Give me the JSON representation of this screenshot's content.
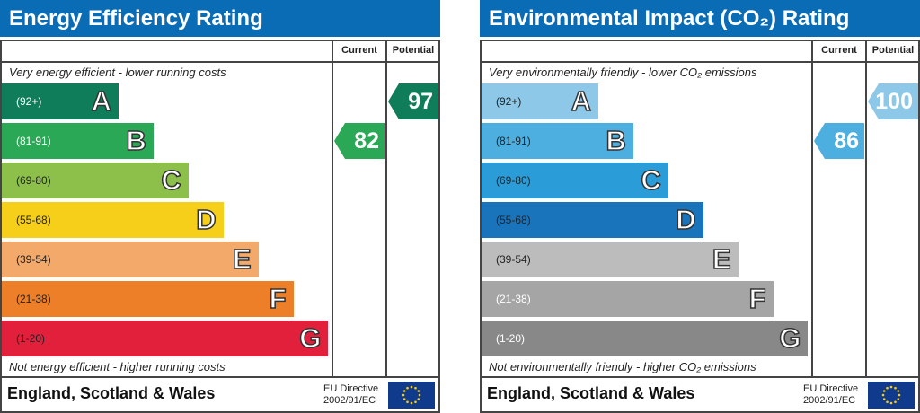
{
  "chart_data": [
    {
      "type": "table",
      "title": "Energy Efficiency Rating",
      "columns": [
        "Current",
        "Potential"
      ],
      "top_note": "Very energy efficient - lower running costs",
      "bottom_note": "Not energy efficient - higher running costs",
      "bands": [
        {
          "range": "(92+)",
          "letter": "A",
          "color": "#0f7d5a",
          "text": "#fff"
        },
        {
          "range": "(81-91)",
          "letter": "B",
          "color": "#2aa855",
          "text": "#fff"
        },
        {
          "range": "(69-80)",
          "letter": "C",
          "color": "#8cc04a",
          "text": "#222"
        },
        {
          "range": "(55-68)",
          "letter": "D",
          "color": "#f5cf1a",
          "text": "#222"
        },
        {
          "range": "(39-54)",
          "letter": "E",
          "color": "#f3a96a",
          "text": "#222"
        },
        {
          "range": "(21-38)",
          "letter": "F",
          "color": "#ec7f27",
          "text": "#222"
        },
        {
          "range": "(1-20)",
          "letter": "G",
          "color": "#e2203c",
          "text": "#222"
        }
      ],
      "current": {
        "value": "82",
        "band": "B"
      },
      "potential": {
        "value": "97",
        "band": "A"
      },
      "footer": "England, Scotland & Wales",
      "directive": [
        "EU Directive",
        "2002/91/EC"
      ]
    },
    {
      "type": "table",
      "title": "Environmental Impact (CO₂) Rating",
      "columns": [
        "Current",
        "Potential"
      ],
      "top_note": "Very environmentally friendly - lower CO₂ emissions",
      "bottom_note": "Not environmentally friendly - higher CO₂ emissions",
      "bands": [
        {
          "range": "(92+)",
          "letter": "A",
          "color": "#8dc8e8",
          "text": "#222"
        },
        {
          "range": "(81-91)",
          "letter": "B",
          "color": "#4daee0",
          "text": "#222"
        },
        {
          "range": "(69-80)",
          "letter": "C",
          "color": "#2a9cd8",
          "text": "#222"
        },
        {
          "range": "(55-68)",
          "letter": "D",
          "color": "#1a74bb",
          "text": "#222"
        },
        {
          "range": "(39-54)",
          "letter": "E",
          "color": "#bcbcbc",
          "text": "#222"
        },
        {
          "range": "(21-38)",
          "letter": "F",
          "color": "#a5a5a5",
          "text": "#fff"
        },
        {
          "range": "(1-20)",
          "letter": "G",
          "color": "#888888",
          "text": "#fff"
        }
      ],
      "current": {
        "value": "86",
        "band": "B"
      },
      "potential": {
        "value": "100",
        "band": "A"
      },
      "footer": "England, Scotland & Wales",
      "directive": [
        "EU Directive",
        "2002/91/EC"
      ]
    }
  ]
}
